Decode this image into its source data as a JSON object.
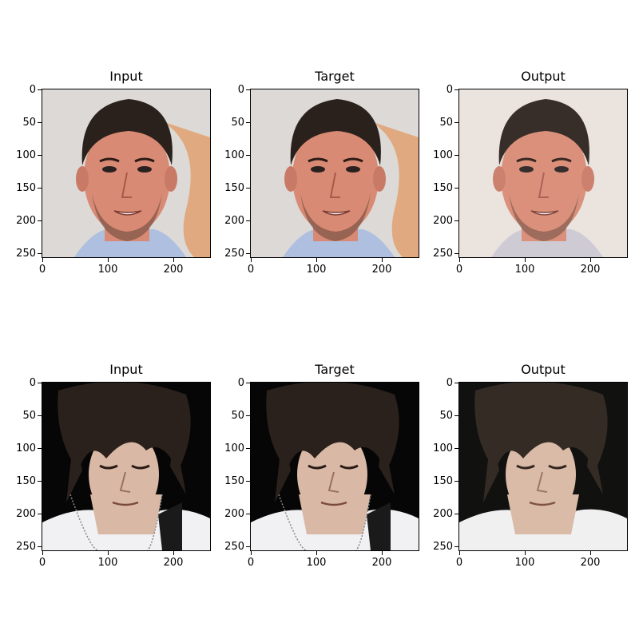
{
  "figure": {
    "rows": [
      {
        "panels": [
          {
            "title": "Input",
            "image": "face-photo-man-smiling-dark-hair-stubble"
          },
          {
            "title": "Target",
            "image": "face-photo-man-smiling-dark-hair-stubble"
          },
          {
            "title": "Output",
            "image": "reconstructed-face-man-smiling-blurred"
          }
        ]
      },
      {
        "panels": [
          {
            "title": "Input",
            "image": "face-photo-young-man-long-bangs-looking-down"
          },
          {
            "title": "Target",
            "image": "face-photo-young-man-long-bangs-looking-down"
          },
          {
            "title": "Output",
            "image": "reconstructed-face-young-man-looking-down"
          }
        ]
      }
    ],
    "x_ticks": [
      "0",
      "100",
      "200"
    ],
    "y_ticks": [
      "0",
      "50",
      "100",
      "150",
      "200",
      "250"
    ],
    "image_extent": [
      0,
      256
    ],
    "colors": {
      "bg_light": "#dcd9d6",
      "bg_dark": "#060606",
      "hair": "#2b211c",
      "skin_warm": "#d98a74",
      "skin_pale": "#d9b9a6",
      "shirt": "#f1f1f3",
      "banner_orange": "#e0a070"
    }
  }
}
